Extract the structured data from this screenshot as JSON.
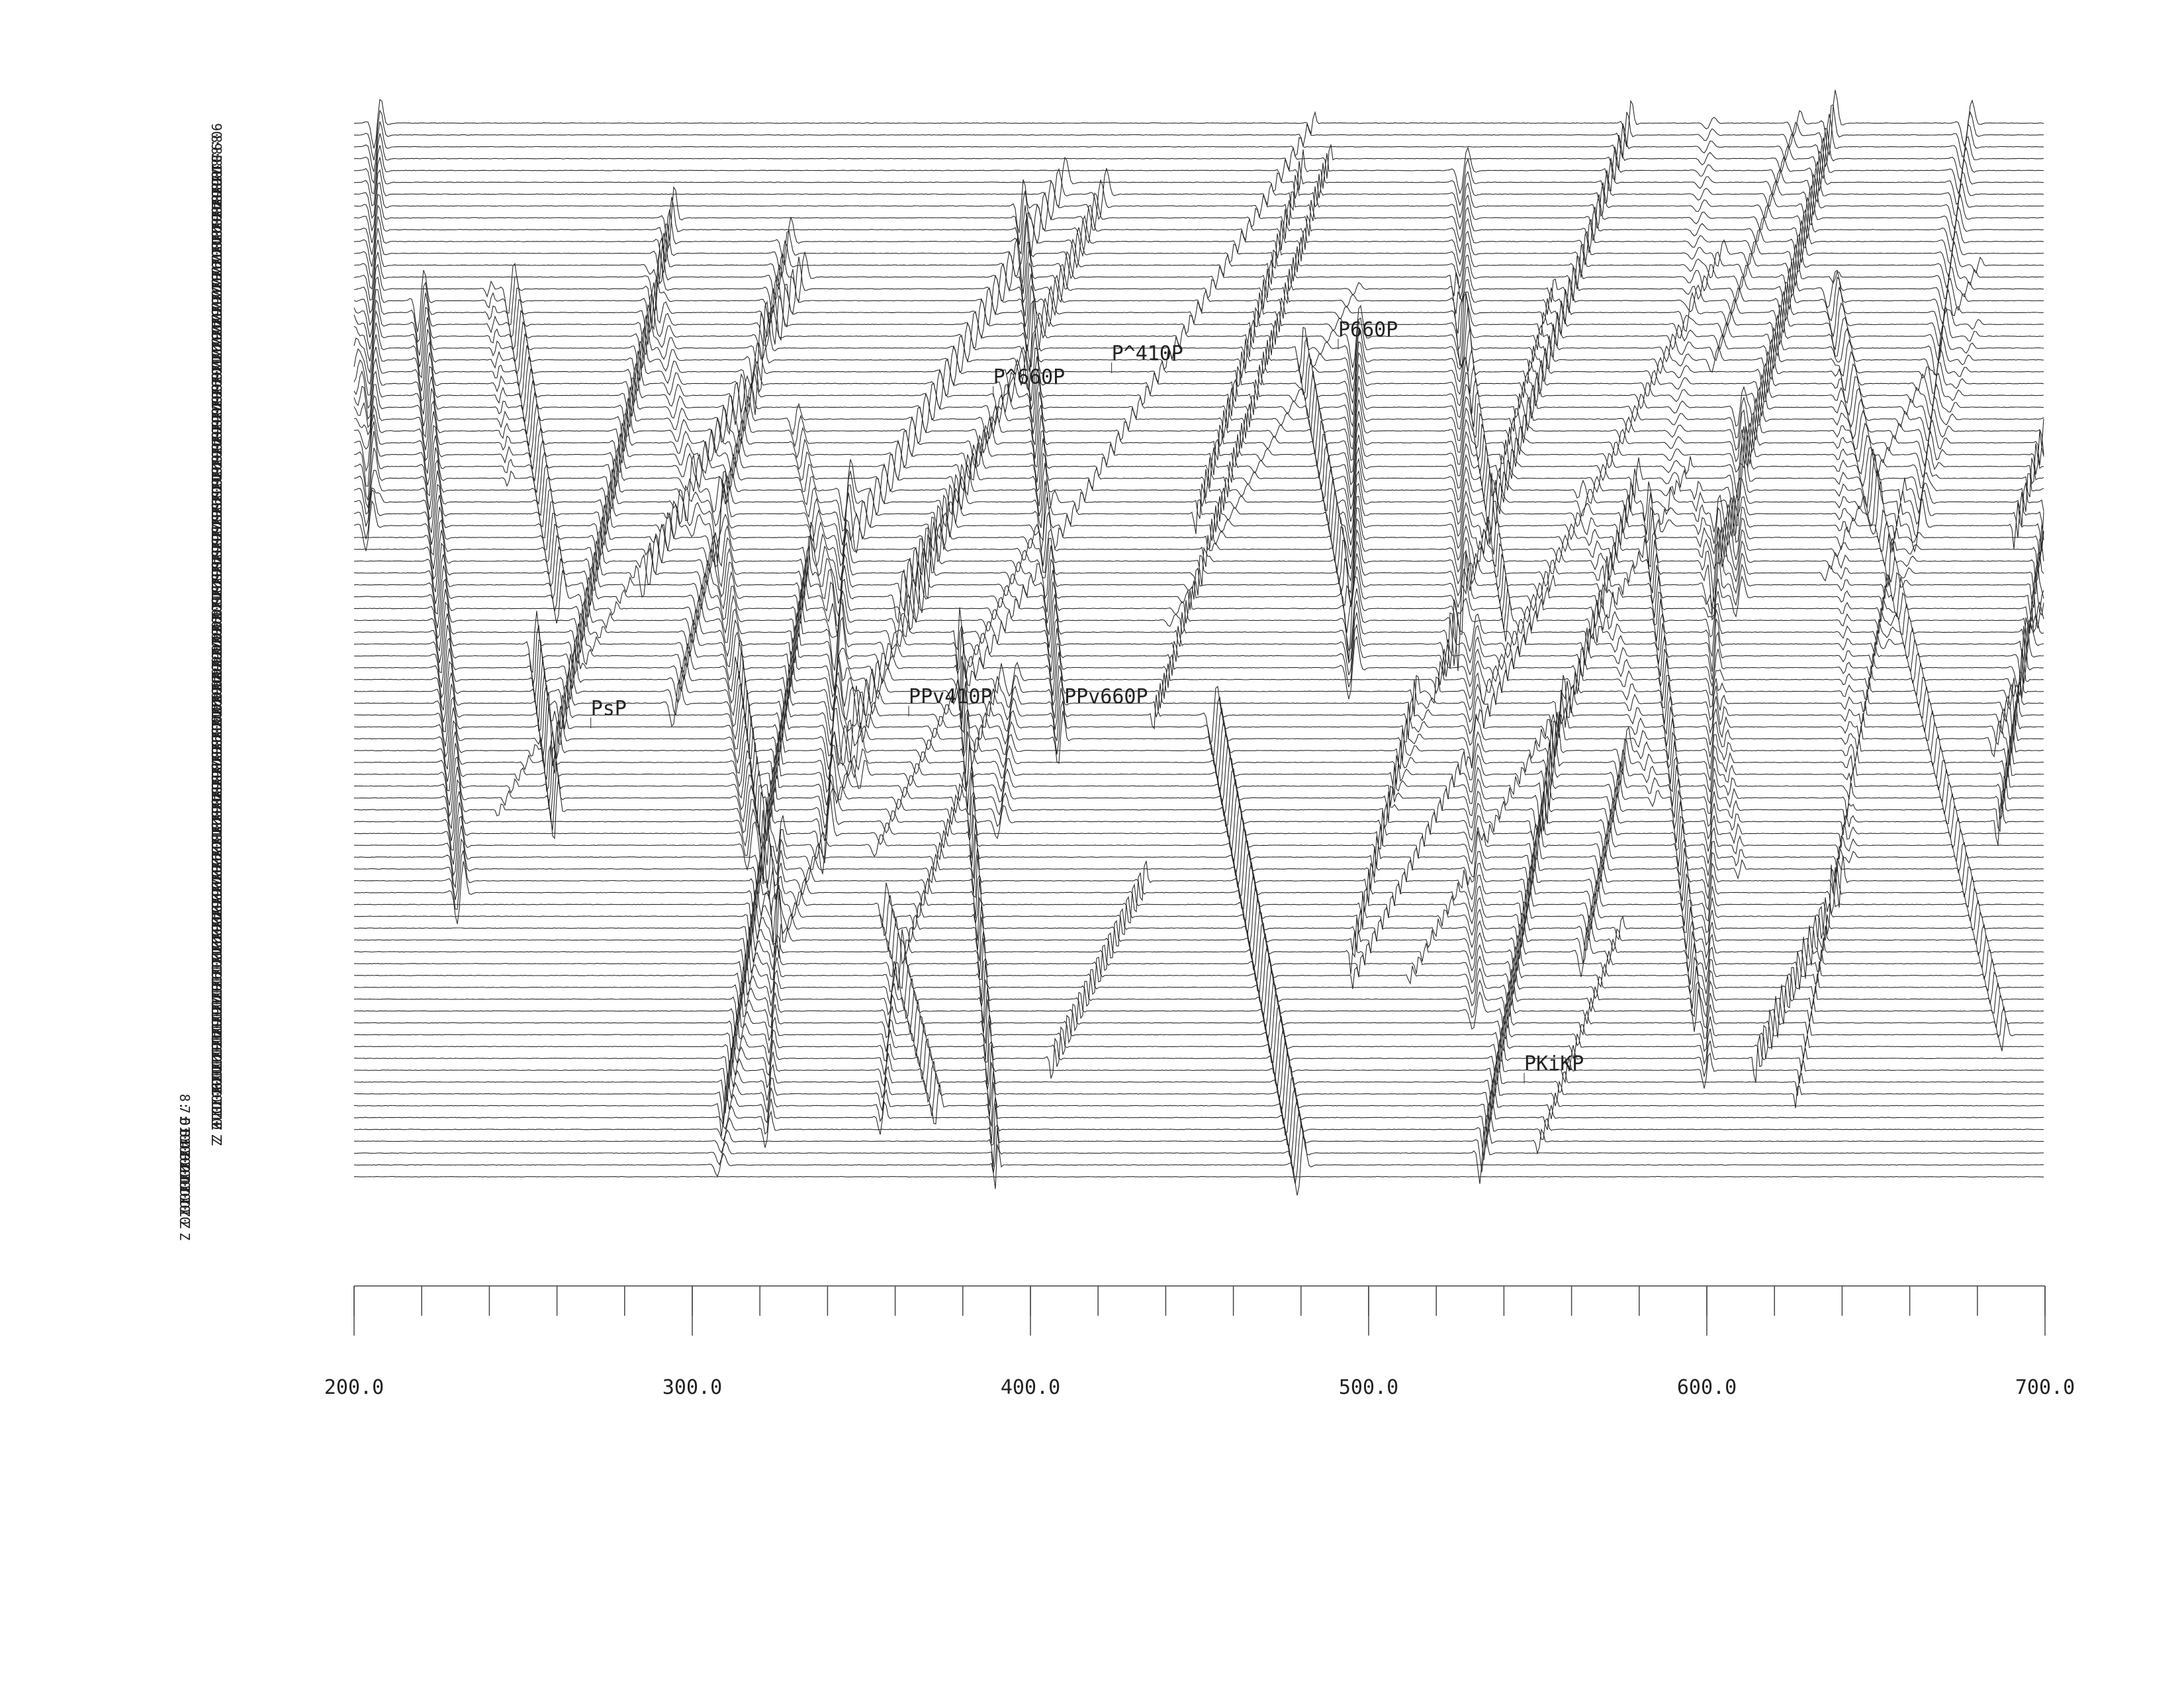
{
  "chart_data": {
    "type": "line",
    "title": "",
    "xlabel": "",
    "ylabel": "",
    "xlim": [
      200.0,
      700.0
    ],
    "x_ticks": [
      200,
      300,
      400,
      500,
      600,
      700
    ],
    "x_tick_labels": [
      "200.0",
      "300.0",
      "400.0",
      "500.0",
      "600.0",
      "700.0"
    ],
    "x_minor_step": 20,
    "trace_count": 90,
    "trace_labels": [
      "1: D10 Z",
      "2: D10 Z",
      "3: D10 Z",
      "4: D10 Z",
      "5: D10 Z",
      "6: D10 Z",
      "7: D10 Z",
      "8: D10 Z",
      "9: D10 Z",
      "10: D10 Z",
      "11: D10 Z",
      "12: D10 Z",
      "13: D10 Z",
      "14: D10 Z",
      "15: D10 Z",
      "16: D10 Z",
      "17: D10 Z",
      "18: D10 Z",
      "19: D10 Z",
      "20: D10 Z",
      "21: D10 Z",
      "22: D10 Z",
      "23: D10 Z",
      "24: D10 Z",
      "25: D10 Z",
      "26: D10 Z",
      "27: D10 Z",
      "28: D10 Z",
      "29: D10 Z",
      "30: D10 Z",
      "31: D10 Z",
      "32: D10 Z",
      "33: D10 Z",
      "34: D10 Z",
      "35: D10 Z",
      "36: D10 Z",
      "37: D10 Z",
      "38: D10 Z",
      "39: D10 Z",
      "40: D10 Z",
      "41: D10 Z",
      "42: D10 Z",
      "43: D10 Z",
      "44: D10 Z",
      "45: D10 Z",
      "46: D10 Z",
      "47: D10 Z",
      "48: D10 Z",
      "49: D10 Z",
      "50: D10 Z",
      "51: D10 Z",
      "52: D10 Z",
      "53: D10 Z",
      "54: D10 Z",
      "55: D10 Z",
      "56: D10 Z",
      "57: D10 Z",
      "58: D10 Z",
      "59: D10 Z",
      "60: D10 Z",
      "61: D10 Z",
      "62: D10 Z",
      "63: D10 Z",
      "64: D10 Z",
      "65: D10 Z",
      "66: D10 Z",
      "67: D10 Z",
      "68: D10 Z",
      "69: D10 Z",
      "70: D10 Z",
      "71: D10 Z",
      "72: D10 Z",
      "73: D10 Z",
      "74: D10 Z",
      "75: D10 Z",
      "76: D10 Z",
      "77: D10 Z",
      "78: D10 Z",
      "79: D10 Z",
      "80: D10 Z",
      "81: D10 Z",
      "82: D10 Z",
      "83: D10 Z",
      "84: D10 Z",
      "85: D10 Z",
      "86: D10 Z",
      "87: D10 Z",
      "88: D10 Z",
      "89: D10 Z",
      "90: D10 Z"
    ],
    "phase_picks": [
      {
        "label": "PsP",
        "x": 270,
        "trace": 40
      },
      {
        "label": "PPv410P",
        "x": 364,
        "trace": 41
      },
      {
        "label": "PPv660P",
        "x": 410,
        "trace": 41
      },
      {
        "label": "P^660P",
        "x": 389,
        "trace": 68
      },
      {
        "label": "P^410P",
        "x": 424,
        "trace": 70
      },
      {
        "label": "P660P",
        "x": 491,
        "trace": 72
      },
      {
        "label": "PKiKP",
        "x": 546,
        "trace": 10
      }
    ],
    "colors": {
      "trace": "#2a2a2a",
      "text": "#222222",
      "axis": "#444444",
      "background": "#ffffff"
    }
  }
}
